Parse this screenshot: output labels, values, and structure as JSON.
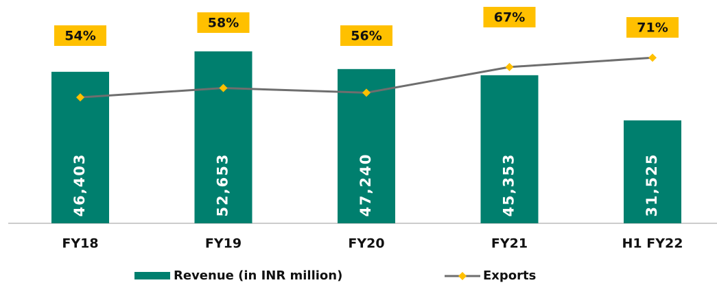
{
  "chart_data": {
    "type": "bar",
    "categories": [
      "FY18",
      "FY19",
      "FY20",
      "FY21",
      "H1 FY22"
    ],
    "ylim": [
      0,
      60000
    ],
    "y2lim": [
      0,
      84
    ],
    "series": [
      {
        "name": "Revenue (in INR million)",
        "type": "bar",
        "color": "#007f6e",
        "values": [
          46403,
          52653,
          47240,
          45353,
          31525
        ],
        "value_labels": [
          "46,403",
          "52,653",
          "47,240",
          "45,353",
          "31,525"
        ]
      },
      {
        "name": "Exports",
        "type": "line",
        "axis": "y2",
        "color": "#6e6e6e",
        "marker_color": "#ffc000",
        "values": [
          54,
          58,
          56,
          67,
          71
        ],
        "value_labels": [
          "54%",
          "58%",
          "56%",
          "67%",
          "71%"
        ]
      }
    ]
  }
}
